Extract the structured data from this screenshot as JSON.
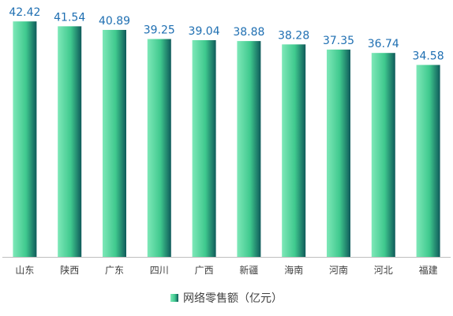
{
  "chart_data": {
    "type": "bar",
    "categories": [
      "山东",
      "陕西",
      "广东",
      "四川",
      "广西",
      "新疆",
      "海南",
      "河南",
      "河北",
      "福建"
    ],
    "series": [
      {
        "name": "网络零售额（亿元）",
        "values": [
          42.42,
          41.54,
          40.89,
          39.25,
          39.04,
          38.88,
          38.28,
          37.35,
          36.74,
          34.58
        ]
      }
    ],
    "data_labels": [
      "42.42",
      "41.54",
      "40.89",
      "39.25",
      "39.04",
      "38.88",
      "38.28",
      "37.35",
      "36.74",
      "34.58"
    ],
    "ylim": [
      0,
      45
    ],
    "grid": false,
    "legend_position": "bottom",
    "colors": {
      "bar_light": "#7EE8B8",
      "bar_mid": "#3FC98E",
      "bar_dark": "#0F5A5A",
      "data_label": "#1F6FB2",
      "axis": "#BFBFBF",
      "tick_label": "#404040"
    }
  },
  "legend": {
    "label": "网络零售额（亿元）"
  }
}
